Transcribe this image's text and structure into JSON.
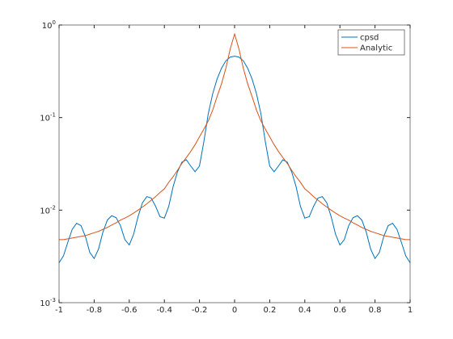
{
  "chart_data": {
    "type": "line",
    "log_y": true,
    "legend": "northeast",
    "box": true,
    "x": [
      -1,
      -0.975,
      -0.95,
      -0.925,
      -0.9,
      -0.875,
      -0.85,
      -0.825,
      -0.8,
      -0.775,
      -0.75,
      -0.725,
      -0.7,
      -0.675,
      -0.65,
      -0.625,
      -0.6,
      -0.575,
      -0.55,
      -0.525,
      -0.5,
      -0.475,
      -0.45,
      -0.425,
      -0.4,
      -0.375,
      -0.35,
      -0.325,
      -0.3,
      -0.275,
      -0.25,
      -0.225,
      -0.2,
      -0.175,
      -0.15,
      -0.125,
      -0.1,
      -0.075,
      -0.05,
      -0.025,
      0,
      0.025,
      0.05,
      0.075,
      0.1,
      0.125,
      0.15,
      0.175,
      0.2,
      0.225,
      0.25,
      0.275,
      0.3,
      0.325,
      0.35,
      0.375,
      0.4,
      0.425,
      0.45,
      0.475,
      0.5,
      0.525,
      0.55,
      0.575,
      0.6,
      0.625,
      0.65,
      0.675,
      0.7,
      0.725,
      0.75,
      0.775,
      0.8,
      0.825,
      0.85,
      0.875,
      0.9,
      0.925,
      0.95,
      0.975,
      1
    ],
    "series": [
      {
        "name": "cpsd",
        "color": "#0072bd",
        "values": [
          0.0027,
          0.0032,
          0.0045,
          0.0062,
          0.0072,
          0.0068,
          0.0052,
          0.0035,
          0.003,
          0.0038,
          0.0058,
          0.0078,
          0.0087,
          0.0083,
          0.0068,
          0.0048,
          0.0042,
          0.0055,
          0.0085,
          0.012,
          0.014,
          0.0135,
          0.011,
          0.0085,
          0.0082,
          0.011,
          0.018,
          0.026,
          0.033,
          0.035,
          0.03,
          0.026,
          0.03,
          0.055,
          0.11,
          0.18,
          0.26,
          0.34,
          0.41,
          0.45,
          0.46,
          0.45,
          0.41,
          0.34,
          0.26,
          0.18,
          0.11,
          0.055,
          0.03,
          0.026,
          0.03,
          0.035,
          0.033,
          0.026,
          0.018,
          0.011,
          0.0082,
          0.0085,
          0.011,
          0.0135,
          0.014,
          0.012,
          0.0085,
          0.0055,
          0.0042,
          0.0048,
          0.0068,
          0.0083,
          0.0087,
          0.0078,
          0.0058,
          0.0038,
          0.003,
          0.0035,
          0.0052,
          0.0068,
          0.0072,
          0.0062,
          0.0045,
          0.0032,
          0.0027
        ]
      },
      {
        "name": "Analytic",
        "color": "#d95319",
        "values": [
          0.0048,
          0.0048,
          0.0049,
          0.005,
          0.0051,
          0.0052,
          0.0053,
          0.0055,
          0.0057,
          0.0059,
          0.0062,
          0.0065,
          0.0069,
          0.0073,
          0.0078,
          0.0082,
          0.0087,
          0.0093,
          0.01,
          0.0108,
          0.0117,
          0.0128,
          0.014,
          0.0155,
          0.017,
          0.02,
          0.023,
          0.027,
          0.032,
          0.037,
          0.043,
          0.051,
          0.062,
          0.075,
          0.092,
          0.12,
          0.168,
          0.23,
          0.34,
          0.55,
          0.8,
          0.55,
          0.34,
          0.23,
          0.168,
          0.12,
          0.092,
          0.075,
          0.062,
          0.051,
          0.043,
          0.037,
          0.032,
          0.027,
          0.023,
          0.02,
          0.017,
          0.0155,
          0.014,
          0.0128,
          0.0117,
          0.0108,
          0.01,
          0.0093,
          0.0087,
          0.0082,
          0.0078,
          0.0073,
          0.0069,
          0.0065,
          0.0062,
          0.0059,
          0.0057,
          0.0055,
          0.0053,
          0.0052,
          0.0051,
          0.005,
          0.0049,
          0.0048,
          0.0048
        ]
      }
    ],
    "xlim": [
      -1,
      1
    ],
    "xticks": [
      -1,
      -0.8,
      -0.6,
      -0.4,
      -0.2,
      0,
      0.2,
      0.4,
      0.6,
      0.8,
      1
    ],
    "ylim": [
      0.001,
      1
    ],
    "yticks": [
      {
        "value": 0.001,
        "label": "10",
        "exponent": "-3"
      },
      {
        "value": 0.01,
        "label": "10",
        "exponent": "-2"
      },
      {
        "value": 0.1,
        "label": "10",
        "exponent": "-1"
      },
      {
        "value": 1,
        "label": "10",
        "exponent": "0"
      }
    ]
  }
}
